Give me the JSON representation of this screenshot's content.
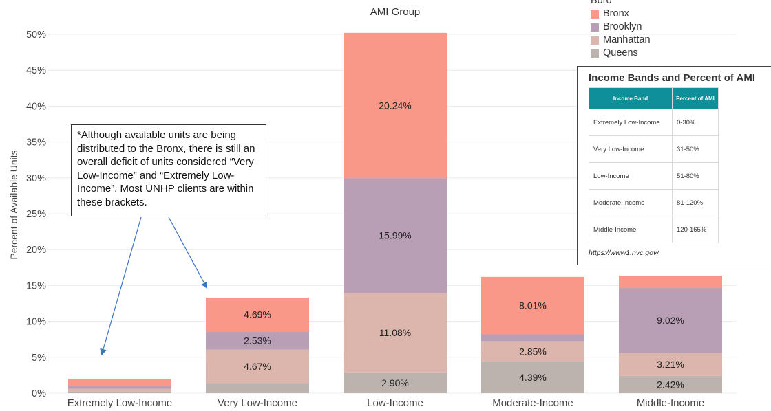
{
  "chart_data": {
    "type": "bar",
    "stacked": true,
    "title": "AMI Group",
    "ylabel": "Percent of Available Units",
    "xlabel": "",
    "ylim": [
      0,
      50
    ],
    "yticks": [
      0,
      5,
      10,
      15,
      20,
      25,
      30,
      35,
      40,
      45,
      50
    ],
    "ytick_labels": [
      "0%",
      "5%",
      "10%",
      "15%",
      "20%",
      "25%",
      "30%",
      "35%",
      "40%",
      "45%",
      "50%"
    ],
    "grid": true,
    "categories": [
      "Extremely Low-Income",
      "Very Low-Income",
      "Low-Income",
      "Moderate-Income",
      "Middle-Income"
    ],
    "series": [
      {
        "name": "Queens",
        "color": "#bcb2ae",
        "values": [
          0.2,
          1.4,
          2.9,
          4.39,
          2.42
        ],
        "labels": [
          "",
          "",
          "2.90%",
          "4.39%",
          "2.42%"
        ]
      },
      {
        "name": "Manhattan",
        "color": "#dcb6ad",
        "values": [
          0.4,
          4.67,
          11.08,
          2.85,
          3.21
        ],
        "labels": [
          "",
          "4.67%",
          "11.08%",
          "2.85%",
          "3.21%"
        ]
      },
      {
        "name": "Brooklyn",
        "color": "#b89fb5",
        "values": [
          0.4,
          2.53,
          15.99,
          0.95,
          9.02
        ],
        "labels": [
          "",
          "2.53%",
          "15.99%",
          "",
          "9.02%"
        ]
      },
      {
        "name": "Bronx",
        "color": "#f99888",
        "values": [
          1.0,
          4.69,
          20.24,
          8.01,
          1.7
        ],
        "labels": [
          "",
          "4.69%",
          "20.24%",
          "8.01%",
          ""
        ]
      }
    ],
    "legend": {
      "title": "Boro",
      "position": "top-right",
      "order": [
        "Bronx",
        "Brooklyn",
        "Manhattan",
        "Queens"
      ]
    }
  },
  "callout": {
    "text": "*Although available units are being distributed to the Bronx, there is still an overall deficit of units considered “Very Low-Income” and “Extremely Low-Income”. Most UNHP clients are within these brackets."
  },
  "inset": {
    "title": "Income Bands and Percent of AMI",
    "headers": [
      "Income Band",
      "Percent of AMI"
    ],
    "rows": [
      [
        "Extremely Low-Income",
        "0-30%"
      ],
      [
        "Very Low-Income",
        "31-50%"
      ],
      [
        "Low-Income",
        "51-80%"
      ],
      [
        "Moderate-Income",
        "81-120%"
      ],
      [
        "Middle-Income",
        "120-165%"
      ]
    ],
    "source": "https://www1.nyc.gov/"
  }
}
